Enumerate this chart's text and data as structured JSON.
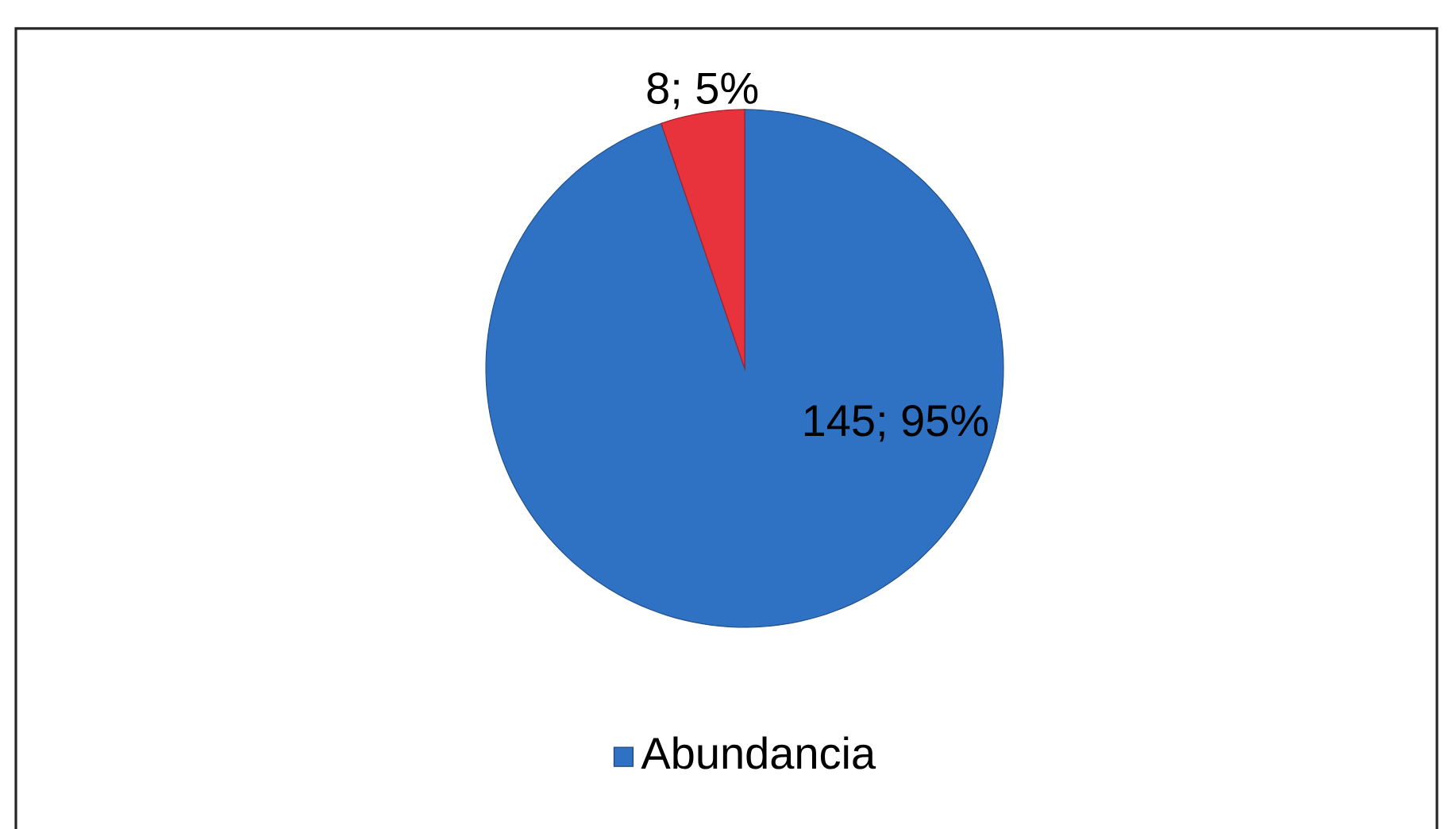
{
  "chart_data": {
    "type": "pie",
    "categories": [
      "Abundancia",
      null
    ],
    "values": [
      145,
      8
    ],
    "colors": [
      "#2f72c4",
      "#e8323c"
    ],
    "value_labels": [
      "145; 95%",
      "8; 5%"
    ],
    "legend": "bottom"
  }
}
